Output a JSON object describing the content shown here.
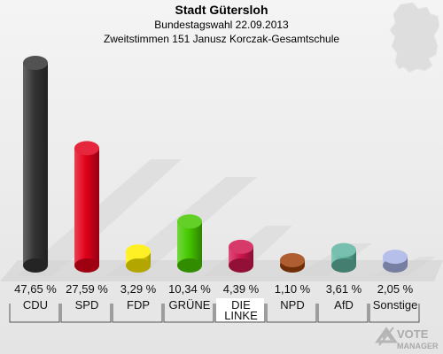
{
  "chart_data": {
    "type": "bar",
    "title": "Stadt Gütersloh",
    "subtitle_1": "Bundestagswahl 22.09.2013",
    "subtitle_2": "Zweitstimmen 151 Janusz Korczak-Gesamtschule",
    "categories": [
      "CDU",
      "SPD",
      "FDP",
      "GRÜNE",
      "DIE LINKE",
      "NPD",
      "AfD",
      "Sonstige"
    ],
    "labels": [
      [
        "CDU"
      ],
      [
        "SPD"
      ],
      [
        "FDP"
      ],
      [
        "GRÜNE"
      ],
      [
        "DIE",
        "LINKE"
      ],
      [
        "NPD"
      ],
      [
        "AfD"
      ],
      [
        "Sonstige"
      ]
    ],
    "values": [
      47.65,
      27.59,
      3.29,
      10.34,
      4.39,
      1.1,
      3.61,
      2.05
    ],
    "value_labels": [
      "47,65 %",
      "27,59 %",
      "3,29 %",
      "10,34 %",
      "4,39 %",
      "1,10 %",
      "3,61 %",
      "2,05 %"
    ],
    "colors": [
      "#333333",
      "#e2001a",
      "#ffed00",
      "#46c800",
      "#d0164f",
      "#a0410c",
      "#5fb4a0",
      "#a8b4e6"
    ],
    "highlight": "DIE LINKE",
    "grid": false,
    "legend": "none"
  },
  "logo": {
    "line1": "VOTE",
    "line2": "MANAGER"
  }
}
